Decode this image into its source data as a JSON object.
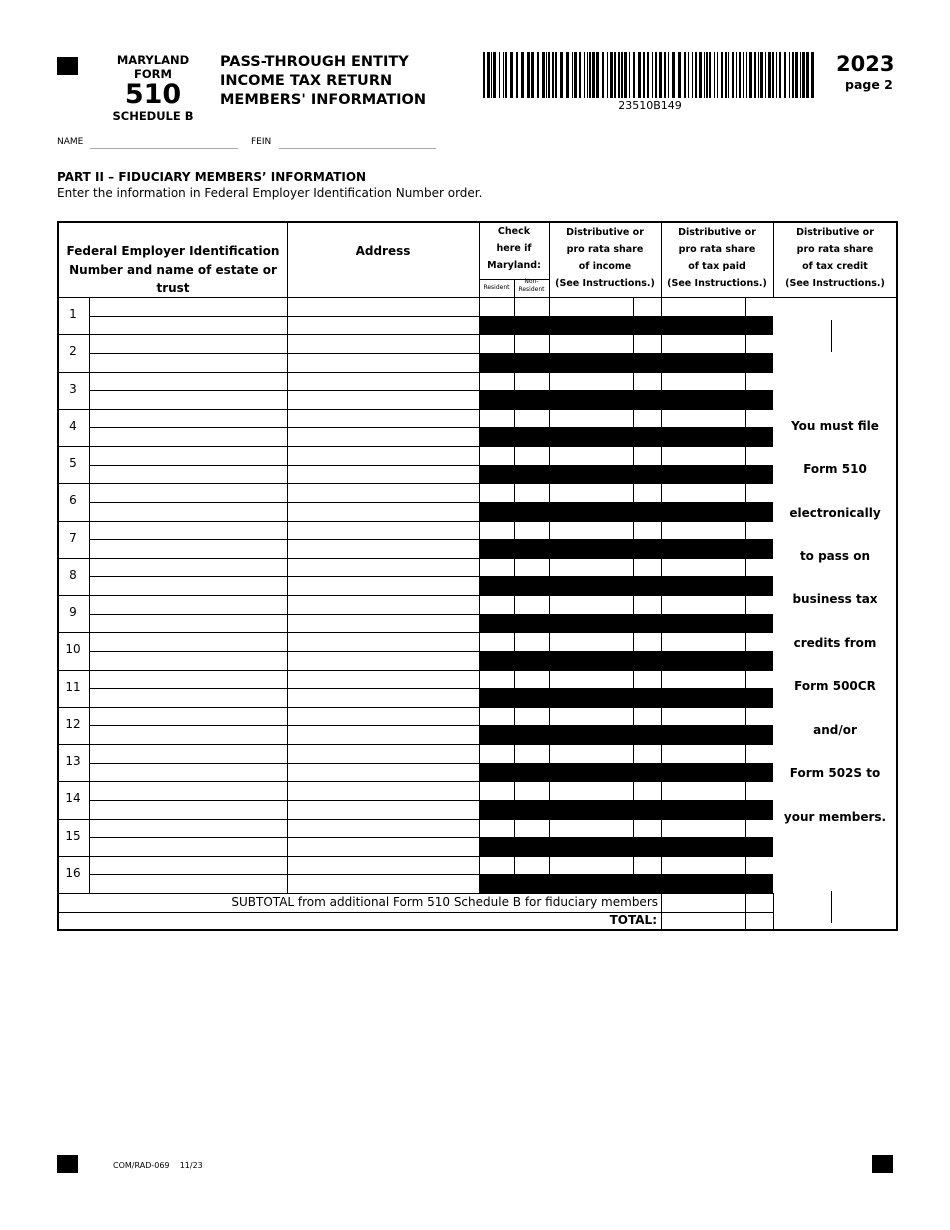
{
  "header": {
    "state": "MARYLAND",
    "form_label": "FORM",
    "form_number": "510",
    "schedule": "SCHEDULE B",
    "title_lines": [
      "PASS-THROUGH ENTITY",
      "INCOME TAX RETURN",
      "MEMBERS' INFORMATION"
    ],
    "barcode_text": "23510B149",
    "year": "2023",
    "page": "page 2"
  },
  "fields": {
    "name_label": "NAME",
    "name_value": "",
    "fein_label": "FEIN",
    "fein_value": ""
  },
  "part": {
    "title": "PART II – FIDUCIARY MEMBERS’ INFORMATION",
    "instructions": "Enter the information in Federal Employer Identification Number order."
  },
  "table": {
    "col_fein": "Federal Employer Identification Number and name of estate or trust",
    "col_address": "Address",
    "col_check": [
      "Check",
      "here if",
      "Maryland:"
    ],
    "col_resident": "Resident",
    "col_nonresident": "Non-Resident",
    "col_income": [
      "Distributive or",
      "pro rata share",
      "of income",
      "(See Instructions.)"
    ],
    "col_taxpaid": [
      "Distributive or",
      "pro rata share",
      "of tax paid",
      "(See Instructions.)"
    ],
    "col_credit": [
      "Distributive or",
      "pro rata share",
      "of tax credit",
      "(See Instructions.)"
    ],
    "rows": [
      "1",
      "2",
      "3",
      "4",
      "5",
      "6",
      "7",
      "8",
      "9",
      "10",
      "11",
      "12",
      "13",
      "14",
      "15",
      "16"
    ],
    "subtotal_label": "SUBTOTAL from additional Form 510 Schedule B for fiduciary members",
    "total_label": "TOTAL:",
    "credit_notice": [
      "You must file",
      "Form 510",
      "electronically",
      "to pass on",
      "business tax",
      "credits from",
      "Form 500CR",
      "and/or",
      "Form 502S to",
      "your members."
    ]
  },
  "footer": {
    "form_code": "COM/RAD-069",
    "revision": "11/23"
  }
}
